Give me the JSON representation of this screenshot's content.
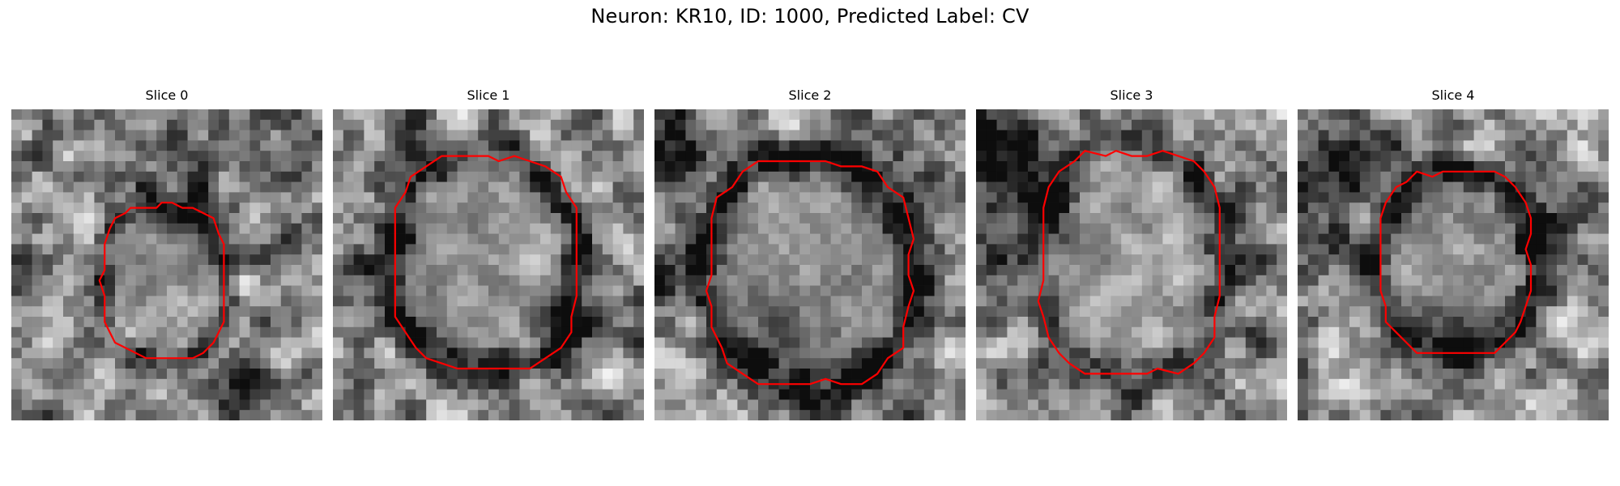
{
  "figure": {
    "title": "Neuron: KR10, ID: 1000, Predicted Label: CV",
    "contour_color": "#ff0000",
    "colormap": "grayscale",
    "grid_size": 30
  },
  "slices": [
    {
      "title": "Slice 0"
    },
    {
      "title": "Slice 1"
    },
    {
      "title": "Slice 2"
    },
    {
      "title": "Slice 3"
    },
    {
      "title": "Slice 4"
    }
  ]
}
